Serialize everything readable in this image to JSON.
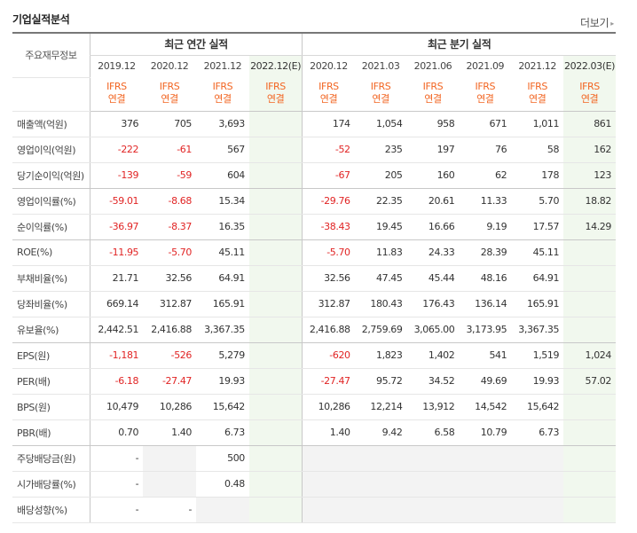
{
  "header": {
    "title": "기업실적분석",
    "more_label": "더보기",
    "more_icon": "chevron-right-icon"
  },
  "table": {
    "row_header_label": "주요재무정보",
    "annual_group_label": "최근 연간 실적",
    "quarterly_group_label": "최근 분기 실적",
    "periods": [
      "2019.12",
      "2020.12",
      "2021.12",
      "2022.12(E)",
      "2020.12",
      "2021.03",
      "2021.06",
      "2021.09",
      "2021.12",
      "2022.03(E)"
    ],
    "basis": {
      "line1": "IFRS",
      "line2": "연결"
    },
    "estimate_columns": [
      3,
      9
    ],
    "rows": [
      {
        "label": "매출액(억원)",
        "values": [
          "376",
          "705",
          "3,693",
          "",
          "174",
          "1,054",
          "958",
          "671",
          "1,011",
          "861"
        ]
      },
      {
        "label": "영업이익(억원)",
        "values": [
          "-222",
          "-61",
          "567",
          "",
          "-52",
          "235",
          "197",
          "76",
          "58",
          "162"
        ]
      },
      {
        "label": "당기순이익(억원)",
        "values": [
          "-139",
          "-59",
          "604",
          "",
          "-67",
          "205",
          "160",
          "62",
          "178",
          "123"
        ]
      },
      {
        "label": "영업이익률(%)",
        "values": [
          "-59.01",
          "-8.68",
          "15.34",
          "",
          "-29.76",
          "22.35",
          "20.61",
          "11.33",
          "5.70",
          "18.82"
        ]
      },
      {
        "label": "순이익률(%)",
        "values": [
          "-36.97",
          "-8.37",
          "16.35",
          "",
          "-38.43",
          "19.45",
          "16.66",
          "9.19",
          "17.57",
          "14.29"
        ]
      },
      {
        "label": "ROE(%)",
        "values": [
          "-11.95",
          "-5.70",
          "45.11",
          "",
          "-5.70",
          "11.83",
          "24.33",
          "28.39",
          "45.11",
          ""
        ]
      },
      {
        "label": "부채비율(%)",
        "values": [
          "21.71",
          "32.56",
          "64.91",
          "",
          "32.56",
          "47.45",
          "45.44",
          "48.16",
          "64.91",
          ""
        ]
      },
      {
        "label": "당좌비율(%)",
        "values": [
          "669.14",
          "312.87",
          "165.91",
          "",
          "312.87",
          "180.43",
          "176.43",
          "136.14",
          "165.91",
          ""
        ]
      },
      {
        "label": "유보율(%)",
        "values": [
          "2,442.51",
          "2,416.88",
          "3,367.35",
          "",
          "2,416.88",
          "2,759.69",
          "3,065.00",
          "3,173.95",
          "3,367.35",
          ""
        ]
      },
      {
        "label": "EPS(원)",
        "values": [
          "-1,181",
          "-526",
          "5,279",
          "",
          "-620",
          "1,823",
          "1,402",
          "541",
          "1,519",
          "1,024"
        ]
      },
      {
        "label": "PER(배)",
        "values": [
          "-6.18",
          "-27.47",
          "19.93",
          "",
          "-27.47",
          "95.72",
          "34.52",
          "49.69",
          "19.93",
          "57.02"
        ]
      },
      {
        "label": "BPS(원)",
        "values": [
          "10,479",
          "10,286",
          "15,642",
          "",
          "10,286",
          "12,214",
          "13,912",
          "14,542",
          "15,642",
          ""
        ]
      },
      {
        "label": "PBR(배)",
        "values": [
          "0.70",
          "1.40",
          "6.73",
          "",
          "1.40",
          "9.42",
          "6.58",
          "10.79",
          "6.73",
          ""
        ]
      },
      {
        "label": "주당배당금(원)",
        "values": [
          "-",
          "",
          "500",
          "",
          "",
          "",
          "",
          "",
          "",
          ""
        ]
      },
      {
        "label": "시가배당률(%)",
        "values": [
          "-",
          "",
          "0.48",
          "",
          "",
          "",
          "",
          "",
          "",
          ""
        ]
      },
      {
        "label": "배당성향(%)",
        "values": [
          "-",
          "-",
          "",
          "",
          "",
          "",
          "",
          "",
          "",
          ""
        ]
      }
    ],
    "group_end_rows": [
      2,
      4,
      8,
      12
    ],
    "shaded_empty_cells": [
      [
        13,
        1
      ],
      [
        14,
        1
      ],
      [
        15,
        2
      ],
      [
        13,
        4
      ],
      [
        13,
        5
      ],
      [
        13,
        6
      ],
      [
        13,
        7
      ],
      [
        13,
        8
      ],
      [
        14,
        4
      ],
      [
        14,
        5
      ],
      [
        14,
        6
      ],
      [
        14,
        7
      ],
      [
        14,
        8
      ],
      [
        15,
        4
      ],
      [
        15,
        5
      ],
      [
        15,
        6
      ],
      [
        15,
        7
      ],
      [
        15,
        8
      ]
    ],
    "colors": {
      "negative": "#e12424",
      "ifrs": "#f26522",
      "estimate_bg": "#f1f8ee"
    }
  }
}
